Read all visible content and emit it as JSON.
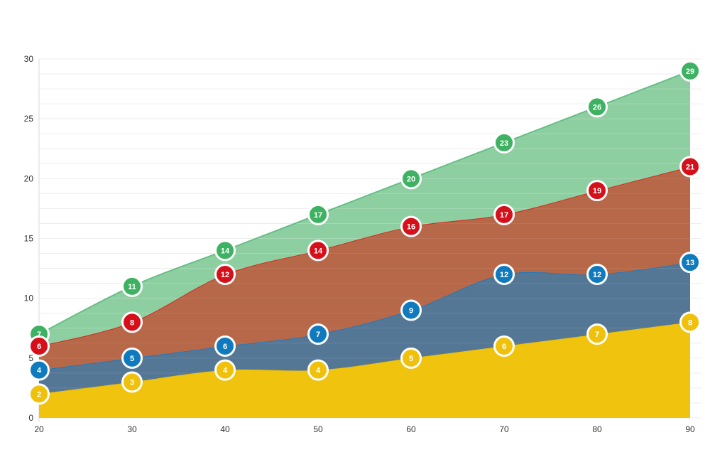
{
  "page": {
    "background": "#ffffff"
  },
  "chart_data": {
    "type": "area",
    "title": "",
    "xlabel": "",
    "ylabel": "",
    "legend": false,
    "grid": true,
    "smooth": true,
    "data_labels": true,
    "x": [
      20,
      30,
      40,
      50,
      60,
      70,
      80,
      90
    ],
    "xlim": [
      20,
      90
    ],
    "ylim": [
      0,
      30
    ],
    "x_ticks": [
      "20",
      "30",
      "40",
      "50",
      "60",
      "70",
      "80",
      "90"
    ],
    "y_ticks": [
      "0",
      "5",
      "10",
      "15",
      "20",
      "25",
      "30"
    ],
    "y_tick_values": [
      0,
      5,
      10,
      15,
      20,
      25,
      30
    ],
    "y_minor_step": 1.25,
    "series": [
      {
        "name": "green",
        "values": [
          7,
          11,
          14,
          17,
          20,
          23,
          26,
          29
        ],
        "marker_color": "#3eb262",
        "line_color": "#66bf85",
        "fill_color": "#8ecfa1",
        "grid_show_through": 0.2
      },
      {
        "name": "red",
        "values": [
          6,
          8,
          12,
          14,
          16,
          17,
          19,
          21
        ],
        "marker_color": "#d6101a",
        "line_color": "#d62a22",
        "fill_color": "#b76849",
        "grid_show_through": 0.08
      },
      {
        "name": "blue",
        "values": [
          4,
          5,
          6,
          7,
          9,
          12,
          12,
          13
        ],
        "marker_color": "#107abe",
        "line_color": "#1d79c0",
        "fill_color": "#557796",
        "grid_show_through": 0.09
      },
      {
        "name": "yellow",
        "values": [
          2,
          3,
          4,
          4,
          5,
          6,
          7,
          8
        ],
        "marker_color": "#f0c10c",
        "line_color": "#edbe07",
        "fill_color": "#f0c40e",
        "grid_show_through": 0.0
      }
    ]
  },
  "style": {
    "grid_color": "#ededed",
    "axis_color": "#d9d9d9",
    "label_color": "#333333",
    "marker_text_color": "#ffffff",
    "marker_ring_color": "#ffffff"
  }
}
